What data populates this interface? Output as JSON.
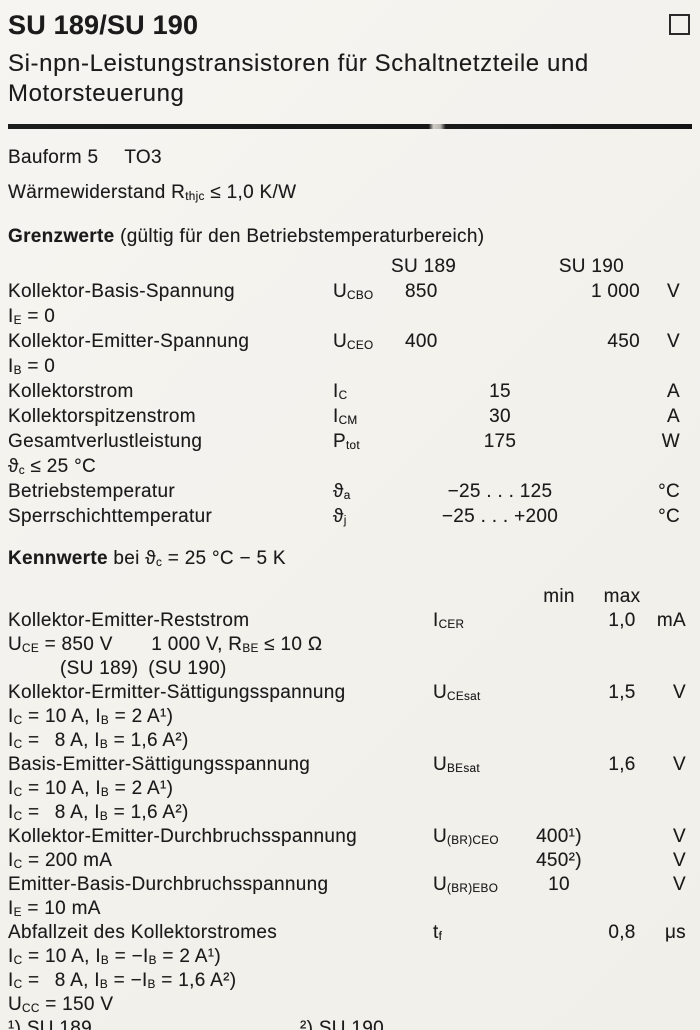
{
  "page": {
    "title": "SU 189/SU 190",
    "subtitle": "Si-npn-Leistungstransistoren für Schaltnetzteile und Motorsteuerung"
  },
  "info": {
    "bauform_label": "Bauform 5",
    "bauform_value": "TO3",
    "thermal": "Wärmewiderstand R~thjc~ ≤ 1,0 K/W"
  },
  "grenzwerte": {
    "heading": "Grenzwerte",
    "heading_note": " (gültig für den Betriebstemperaturbereich)",
    "col1": "SU 189",
    "col2": "SU 190",
    "rows": [
      {
        "label": "Kollektor-Basis-Spannung",
        "symbol": "U~CBO~",
        "v1": "850",
        "v2": "1 000",
        "unit": "V"
      },
      {
        "cond": "I~E~ = 0"
      },
      {
        "label": "Kollektor-Emitter-Spannung",
        "symbol": "U~CEO~",
        "v1": "400",
        "v2": "450",
        "unit": "V"
      },
      {
        "cond": "I~B~ = 0"
      },
      {
        "label": "Kollektorstrom",
        "symbol": "I~C~",
        "vc": "15",
        "unit": "A"
      },
      {
        "label": "Kollektorspitzenstrom",
        "symbol": "I~CM~",
        "vc": "30",
        "unit": "A"
      },
      {
        "label": "Gesamtverlustleistung",
        "symbol": "P~tot~",
        "vc": "175",
        "unit": "W"
      },
      {
        "cond": "ϑ~c~ ≤ 25 °C"
      },
      {
        "label": "Betriebstemperatur",
        "symbol": "ϑ~a~",
        "vc": "−25 . . . 125",
        "unit": "°C"
      },
      {
        "label": "Sperrschichttemperatur",
        "symbol": "ϑ~j~",
        "vc": "−25 . . . +200",
        "unit": "°C"
      }
    ]
  },
  "kennwerte": {
    "heading": "Kennwerte",
    "heading_rest": " bei ϑ~c~ = 25 °C − 5 K",
    "min_label": "min",
    "max_label": "max",
    "rows": [
      {
        "label": "Kollektor-Emitter-Reststrom",
        "symbol": "I~CER~",
        "max": "1,0",
        "unit": "mA"
      },
      {
        "cond": "U~CE~ = 850 V  1 000 V, R~BE~ ≤ 10 Ω"
      },
      {
        "cond": "(SU 189) (SU 190)"
      },
      {
        "label": "Kollektor-Ermitter-Sättigungsspannung",
        "symbol": "U~CEsat~",
        "max": "1,5",
        "unit": "V"
      },
      {
        "cond": "I~C~ = 10 A, I~B~ = 2 A¹)"
      },
      {
        "cond": "I~C~ =  8 A, I~B~ = 1,6 A²)"
      },
      {
        "label": "Basis-Emitter-Sättigungsspannung",
        "symbol": "U~BEsat~",
        "max": "1,6",
        "unit": "V"
      },
      {
        "cond": "I~C~ = 10 A, I~B~ = 2 A¹)"
      },
      {
        "cond": "I~C~ =  8 A, I~B~ = 1,6 A²)"
      },
      {
        "label": "Kollektor-Emitter-Durchbruchsspannung",
        "symbol": "U~(BR)CEO~",
        "min": "400¹)",
        "unit": "V"
      },
      {
        "cond": "I~C~ = 200 mA",
        "min": "450²)",
        "unit": "V"
      },
      {
        "label": "Emitter-Basis-Durchbruchsspannung",
        "symbol": "U~(BR)EBO~",
        "min": "10",
        "unit": "V"
      },
      {
        "cond": "I~E~ = 10 mA"
      },
      {
        "label": "Abfallzeit des Kollektorstromes",
        "symbol": "t~f~",
        "max": "0,8",
        "unit": "μs"
      },
      {
        "cond": "I~C~ = 10 A, I~B~ = −I~B~ = 2 A¹)"
      },
      {
        "cond": "I~C~ =  8 A, I~B~ = −I~B~ = 1,6 A²)"
      },
      {
        "cond": "U~CC~ = 150 V"
      }
    ]
  },
  "footnotes": {
    "fn1": "¹) SU 189",
    "fn2": "²) SU 190"
  }
}
